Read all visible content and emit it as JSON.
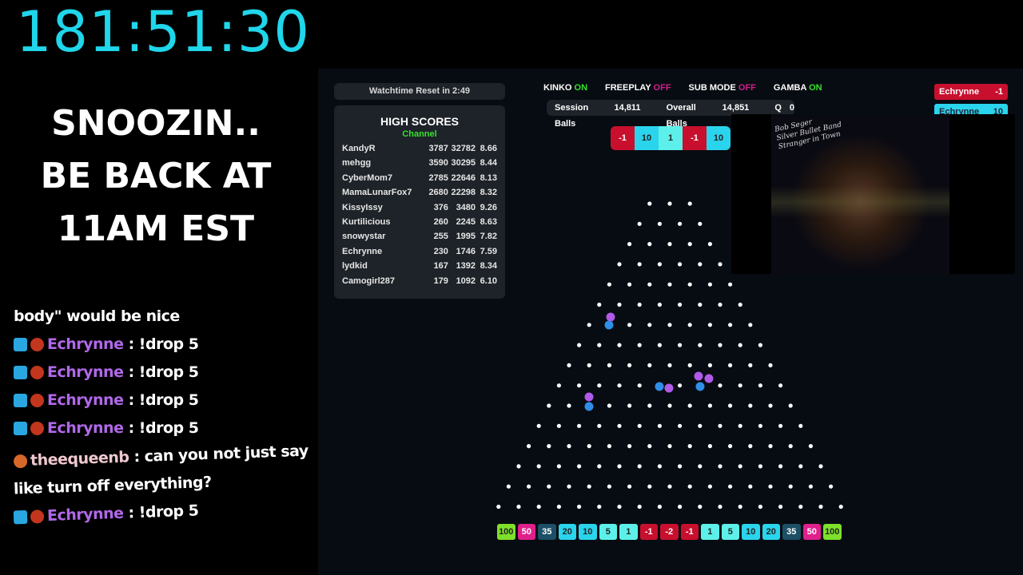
{
  "timer": "181:51:30",
  "status_lines": [
    "SNOOZIN..",
    "BE BACK AT",
    "11AM EST"
  ],
  "chat": [
    {
      "user": "",
      "text": "body\" would be nice",
      "badges": []
    },
    {
      "user": "Echrynne",
      "text": ": !drop 5",
      "badges": [
        "cube-badge-icon",
        "avatar-badge-icon"
      ]
    },
    {
      "user": "Echrynne",
      "text": ": !drop 5",
      "badges": [
        "cube-badge-icon",
        "avatar-badge-icon"
      ]
    },
    {
      "user": "Echrynne",
      "text": ": !drop 5",
      "badges": [
        "cube-badge-icon",
        "avatar-badge-icon"
      ]
    },
    {
      "user": "Echrynne",
      "text": ": !drop 5",
      "badges": [
        "cube-badge-icon",
        "avatar-badge-icon"
      ]
    },
    {
      "user": "theequeenb",
      "text": ": can you not just say",
      "badges": [
        "avatar-badge-icon"
      ]
    },
    {
      "user": "",
      "text": "like turn off everything?",
      "badges": []
    },
    {
      "user": "Echrynne",
      "text": ": !drop 5",
      "badges": [
        "cube-badge-icon",
        "avatar-badge-icon"
      ]
    }
  ],
  "watchtime": "Watchtime Reset in  2:49",
  "high_scores": {
    "title": "HIGH SCORES",
    "subtitle": "Channel",
    "rows": [
      [
        "KandyR",
        "3787",
        "32782",
        "8.66"
      ],
      [
        "mehgg",
        "3590",
        "30295",
        "8.44"
      ],
      [
        "CyberMom7",
        "2785",
        "22646",
        "8.13"
      ],
      [
        "MamaLunarFox7",
        "2680",
        "22298",
        "8.32"
      ],
      [
        "KissyIssy",
        "376",
        "3480",
        "9.26"
      ],
      [
        "Kurtilicious",
        "260",
        "2245",
        "8.63"
      ],
      [
        "snowystar",
        "255",
        "1995",
        "7.82"
      ],
      [
        "Echrynne",
        "230",
        "1746",
        "7.59"
      ],
      [
        "lydkid",
        "167",
        "1392",
        "8.34"
      ],
      [
        "Camogirl287",
        "179",
        "1092",
        "6.10"
      ]
    ]
  },
  "toggles": [
    {
      "label": "KINKO",
      "state": "ON"
    },
    {
      "label": "FREEPLAY",
      "state": "OFF"
    },
    {
      "label": "SUB MODE",
      "state": "OFF"
    },
    {
      "label": "GAMBA",
      "state": "ON"
    }
  ],
  "stats": {
    "session_label": "Session Balls",
    "session": "14,811",
    "overall_label": "Overall Balls",
    "overall": "14,851",
    "q_label": "Q",
    "q": "0"
  },
  "recent": [
    "-1",
    "10",
    "1",
    "-1",
    "10"
  ],
  "feed": [
    {
      "user": "Echrynne",
      "value": "-1"
    },
    {
      "user": "Echrynne",
      "value": "10"
    }
  ],
  "album_logo": "Bob Seger & The Silver Bullet Band — Stranger in Town",
  "buckets": [
    "100",
    "50",
    "35",
    "20",
    "10",
    "5",
    "1",
    "-1",
    "-2",
    "-1",
    "1",
    "5",
    "10",
    "20",
    "35",
    "50",
    "100"
  ],
  "colors": {
    "100": "#7ee02a",
    "50": "#e0208a",
    "35": "#1d4f66",
    "20": "#2ad4ec",
    "10": "#2ad4ec",
    "5": "#5df0ea",
    "1": "#5df0ea",
    "-1": "#c8102e",
    "-2": "#c8102e",
    "ball_purple": "#b05ae8",
    "ball_blue": "#2f8ee8",
    "timer": "#1fd6ea"
  }
}
